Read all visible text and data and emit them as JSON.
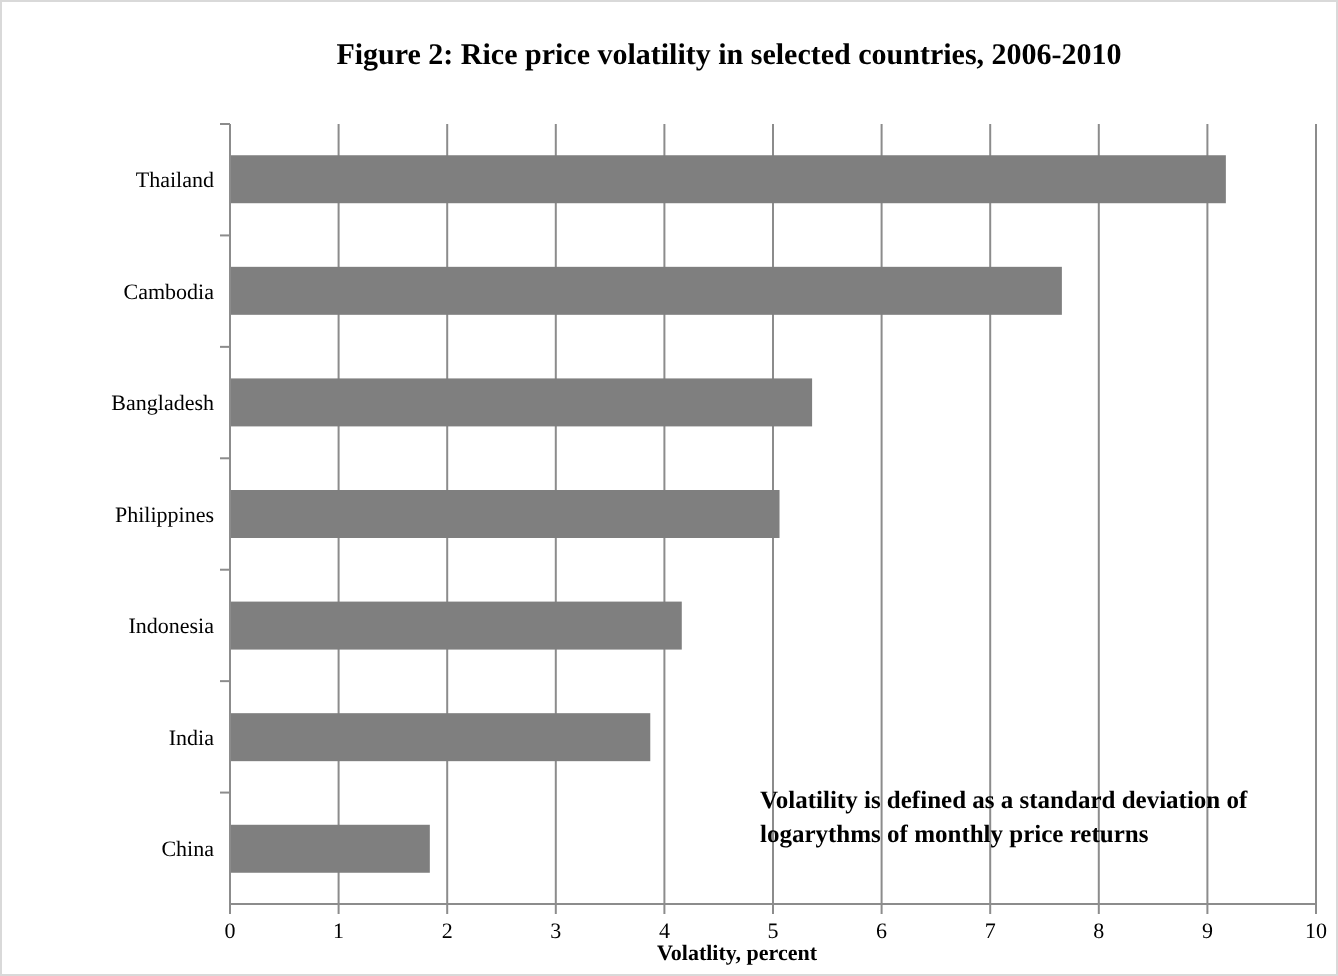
{
  "chart_data": {
    "type": "bar",
    "orientation": "horizontal",
    "title": "Figure 2: Rice price volatility in selected countries, 2006-2010",
    "xlabel": "Volatlity, percent",
    "categories": [
      "Thailand",
      "Cambodia",
      "Bangladesh",
      "Philippines",
      "Indonesia",
      "India",
      "China"
    ],
    "values": [
      9.17,
      7.66,
      5.36,
      5.06,
      4.16,
      3.87,
      1.84
    ],
    "color": "#7f7f7f",
    "xlim": [
      0,
      10
    ],
    "xticks": [
      0,
      1,
      2,
      3,
      4,
      5,
      6,
      7,
      8,
      9,
      10
    ],
    "grid": "x",
    "annotations": [
      "Volatility is defined as a standard deviation of logarythms of monthly price returns"
    ]
  }
}
